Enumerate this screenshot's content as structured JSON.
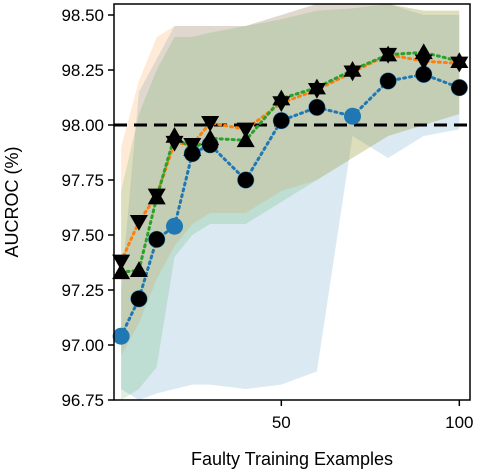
{
  "chart_data": {
    "type": "line",
    "title": "",
    "xlabel": "Faulty Training Examples",
    "ylabel": "AUCROC (%)",
    "xlim": [
      3,
      103
    ],
    "ylim": [
      96.75,
      98.55
    ],
    "x_ticks": [
      50,
      100
    ],
    "x_tick_labels": [
      "50",
      "100"
    ],
    "y_ticks": [
      96.75,
      97.0,
      97.25,
      97.5,
      97.75,
      98.0,
      98.25,
      98.5
    ],
    "y_tick_labels": [
      "96.75",
      "97.00",
      "97.25",
      "97.50",
      "97.75",
      "98.00",
      "98.25",
      "98.50"
    ],
    "grid": false,
    "reference_line": {
      "y": 98.0,
      "style": "dashed",
      "color": "#000000"
    },
    "x": [
      5,
      10,
      15,
      20,
      25,
      30,
      40,
      50,
      60,
      70,
      80,
      90,
      100
    ],
    "series": [
      {
        "color": "#1f77b4",
        "marker": "circle",
        "line": "dotted",
        "values": [
          97.04,
          97.21,
          97.48,
          97.54,
          97.87,
          97.91,
          97.75,
          98.02,
          98.08,
          98.04,
          98.2,
          98.23,
          98.17
        ],
        "band_lower": [
          96.8,
          96.75,
          96.78,
          96.8,
          96.82,
          96.82,
          96.8,
          96.82,
          96.88,
          97.95,
          97.85,
          97.95,
          97.98
        ],
        "band_upper": [
          97.25,
          98.15,
          98.3,
          98.45,
          98.45,
          98.45,
          98.45,
          98.5,
          98.55,
          98.55,
          98.55,
          98.5,
          98.5
        ]
      },
      {
        "color": "#ff7f0e",
        "marker": "triangle-down",
        "line": "dotted",
        "values": [
          97.38,
          97.56,
          97.68,
          97.92,
          97.91,
          98.01,
          97.98,
          98.1,
          98.16,
          98.24,
          98.32,
          98.29,
          98.28
        ],
        "band_lower": [
          96.95,
          97.1,
          97.3,
          97.45,
          97.55,
          97.6,
          97.6,
          97.7,
          97.75,
          97.85,
          97.95,
          98.0,
          98.05
        ],
        "band_upper": [
          97.9,
          98.2,
          98.4,
          98.45,
          98.45,
          98.45,
          98.45,
          98.5,
          98.55,
          98.55,
          98.55,
          98.52,
          98.52
        ]
      },
      {
        "color": "#2ca02c",
        "marker": "triangle-up",
        "line": "dotted",
        "values": [
          97.33,
          97.34,
          97.67,
          97.95,
          97.89,
          97.94,
          97.93,
          98.12,
          98.17,
          98.25,
          98.32,
          98.33,
          98.29
        ],
        "band_lower": [
          96.75,
          96.8,
          96.9,
          97.4,
          97.5,
          97.55,
          97.55,
          97.65,
          97.75,
          97.85,
          97.95,
          98.0,
          98.05
        ],
        "band_upper": [
          97.7,
          98.05,
          98.25,
          98.4,
          98.4,
          98.42,
          98.45,
          98.48,
          98.52,
          98.53,
          98.55,
          98.52,
          98.52
        ]
      }
    ],
    "overlay_markers_color": "#000000"
  }
}
